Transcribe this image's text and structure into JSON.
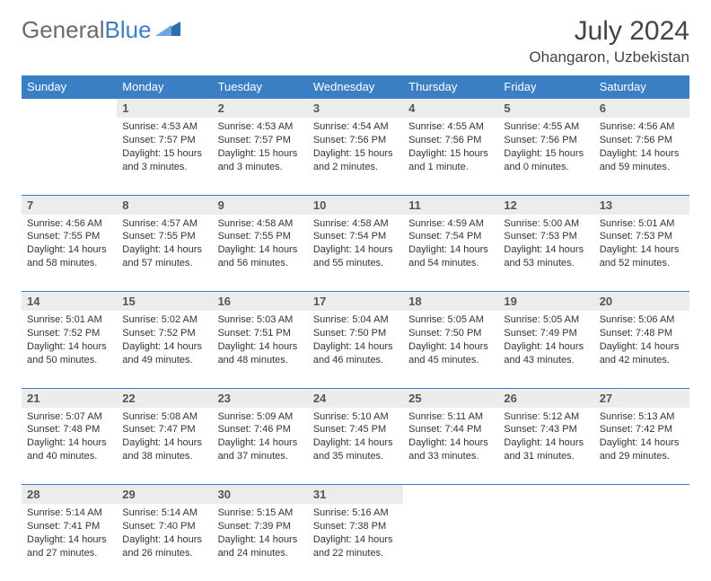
{
  "logo": {
    "text1": "General",
    "text2": "Blue"
  },
  "title": "July 2024",
  "location": "Ohangaron, Uzbekistan",
  "colors": {
    "header_bg": "#3a7fc4",
    "header_text": "#ffffff",
    "daynum_bg": "#ececec",
    "border": "#3a7fc4",
    "logo_gray": "#6a6a6a",
    "logo_blue": "#3a7fc4"
  },
  "day_headers": [
    "Sunday",
    "Monday",
    "Tuesday",
    "Wednesday",
    "Thursday",
    "Friday",
    "Saturday"
  ],
  "weeks": [
    [
      null,
      {
        "n": "1",
        "sr": "4:53 AM",
        "ss": "7:57 PM",
        "dl": "15 hours and 3 minutes."
      },
      {
        "n": "2",
        "sr": "4:53 AM",
        "ss": "7:57 PM",
        "dl": "15 hours and 3 minutes."
      },
      {
        "n": "3",
        "sr": "4:54 AM",
        "ss": "7:56 PM",
        "dl": "15 hours and 2 minutes."
      },
      {
        "n": "4",
        "sr": "4:55 AM",
        "ss": "7:56 PM",
        "dl": "15 hours and 1 minute."
      },
      {
        "n": "5",
        "sr": "4:55 AM",
        "ss": "7:56 PM",
        "dl": "15 hours and 0 minutes."
      },
      {
        "n": "6",
        "sr": "4:56 AM",
        "ss": "7:56 PM",
        "dl": "14 hours and 59 minutes."
      }
    ],
    [
      {
        "n": "7",
        "sr": "4:56 AM",
        "ss": "7:55 PM",
        "dl": "14 hours and 58 minutes."
      },
      {
        "n": "8",
        "sr": "4:57 AM",
        "ss": "7:55 PM",
        "dl": "14 hours and 57 minutes."
      },
      {
        "n": "9",
        "sr": "4:58 AM",
        "ss": "7:55 PM",
        "dl": "14 hours and 56 minutes."
      },
      {
        "n": "10",
        "sr": "4:58 AM",
        "ss": "7:54 PM",
        "dl": "14 hours and 55 minutes."
      },
      {
        "n": "11",
        "sr": "4:59 AM",
        "ss": "7:54 PM",
        "dl": "14 hours and 54 minutes."
      },
      {
        "n": "12",
        "sr": "5:00 AM",
        "ss": "7:53 PM",
        "dl": "14 hours and 53 minutes."
      },
      {
        "n": "13",
        "sr": "5:01 AM",
        "ss": "7:53 PM",
        "dl": "14 hours and 52 minutes."
      }
    ],
    [
      {
        "n": "14",
        "sr": "5:01 AM",
        "ss": "7:52 PM",
        "dl": "14 hours and 50 minutes."
      },
      {
        "n": "15",
        "sr": "5:02 AM",
        "ss": "7:52 PM",
        "dl": "14 hours and 49 minutes."
      },
      {
        "n": "16",
        "sr": "5:03 AM",
        "ss": "7:51 PM",
        "dl": "14 hours and 48 minutes."
      },
      {
        "n": "17",
        "sr": "5:04 AM",
        "ss": "7:50 PM",
        "dl": "14 hours and 46 minutes."
      },
      {
        "n": "18",
        "sr": "5:05 AM",
        "ss": "7:50 PM",
        "dl": "14 hours and 45 minutes."
      },
      {
        "n": "19",
        "sr": "5:05 AM",
        "ss": "7:49 PM",
        "dl": "14 hours and 43 minutes."
      },
      {
        "n": "20",
        "sr": "5:06 AM",
        "ss": "7:48 PM",
        "dl": "14 hours and 42 minutes."
      }
    ],
    [
      {
        "n": "21",
        "sr": "5:07 AM",
        "ss": "7:48 PM",
        "dl": "14 hours and 40 minutes."
      },
      {
        "n": "22",
        "sr": "5:08 AM",
        "ss": "7:47 PM",
        "dl": "14 hours and 38 minutes."
      },
      {
        "n": "23",
        "sr": "5:09 AM",
        "ss": "7:46 PM",
        "dl": "14 hours and 37 minutes."
      },
      {
        "n": "24",
        "sr": "5:10 AM",
        "ss": "7:45 PM",
        "dl": "14 hours and 35 minutes."
      },
      {
        "n": "25",
        "sr": "5:11 AM",
        "ss": "7:44 PM",
        "dl": "14 hours and 33 minutes."
      },
      {
        "n": "26",
        "sr": "5:12 AM",
        "ss": "7:43 PM",
        "dl": "14 hours and 31 minutes."
      },
      {
        "n": "27",
        "sr": "5:13 AM",
        "ss": "7:42 PM",
        "dl": "14 hours and 29 minutes."
      }
    ],
    [
      {
        "n": "28",
        "sr": "5:14 AM",
        "ss": "7:41 PM",
        "dl": "14 hours and 27 minutes."
      },
      {
        "n": "29",
        "sr": "5:14 AM",
        "ss": "7:40 PM",
        "dl": "14 hours and 26 minutes."
      },
      {
        "n": "30",
        "sr": "5:15 AM",
        "ss": "7:39 PM",
        "dl": "14 hours and 24 minutes."
      },
      {
        "n": "31",
        "sr": "5:16 AM",
        "ss": "7:38 PM",
        "dl": "14 hours and 22 minutes."
      },
      null,
      null,
      null
    ]
  ],
  "labels": {
    "sunrise": "Sunrise:",
    "sunset": "Sunset:",
    "daylight": "Daylight:"
  }
}
